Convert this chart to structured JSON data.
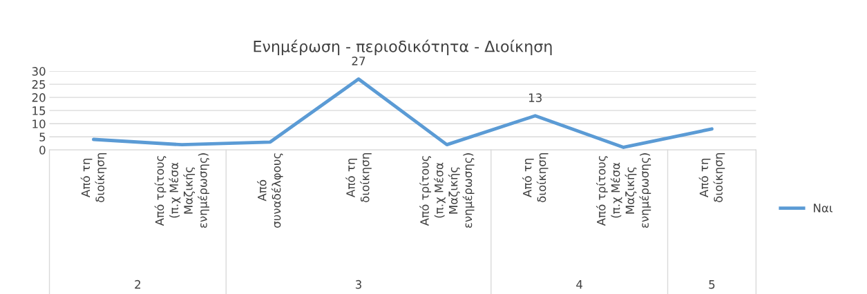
{
  "chart_data": {
    "type": "line",
    "title": "Ενημέρωση - περιοδικότητα - Διοίκηση",
    "categories": [
      "Από τη\nδιοίκηση",
      "Από τρίτους\n(π.χ Μέσα\nΜαζικής\nενημέρωσης)",
      "Από\nσυναδέλφους",
      "Από τη\nδιοίκηση",
      "Από τρίτους\n(π.χ Μέσα\nΜαζικής\nενημέρωσης)",
      "Από τη\nδιοίκηση",
      "Από τρίτους\n(π.χ Μέσα\nΜαζικής\nενημέρωσης)",
      "Από τη\nδιοίκηση"
    ],
    "series": [
      {
        "name": "Ναι",
        "color": "#5b9bd5",
        "values": [
          4,
          2,
          3,
          27,
          2,
          13,
          1,
          8
        ],
        "value_labels": [
          null,
          null,
          null,
          "27",
          null,
          "13",
          null,
          null
        ]
      }
    ],
    "annotations": [
      "2",
      "3",
      "4",
      "5"
    ],
    "ylim": [
      0,
      30
    ],
    "yticks": [
      0,
      5,
      10,
      15,
      20,
      25,
      30
    ],
    "grid": "y",
    "legend": "right",
    "marker": "none",
    "line_style": "solid"
  }
}
